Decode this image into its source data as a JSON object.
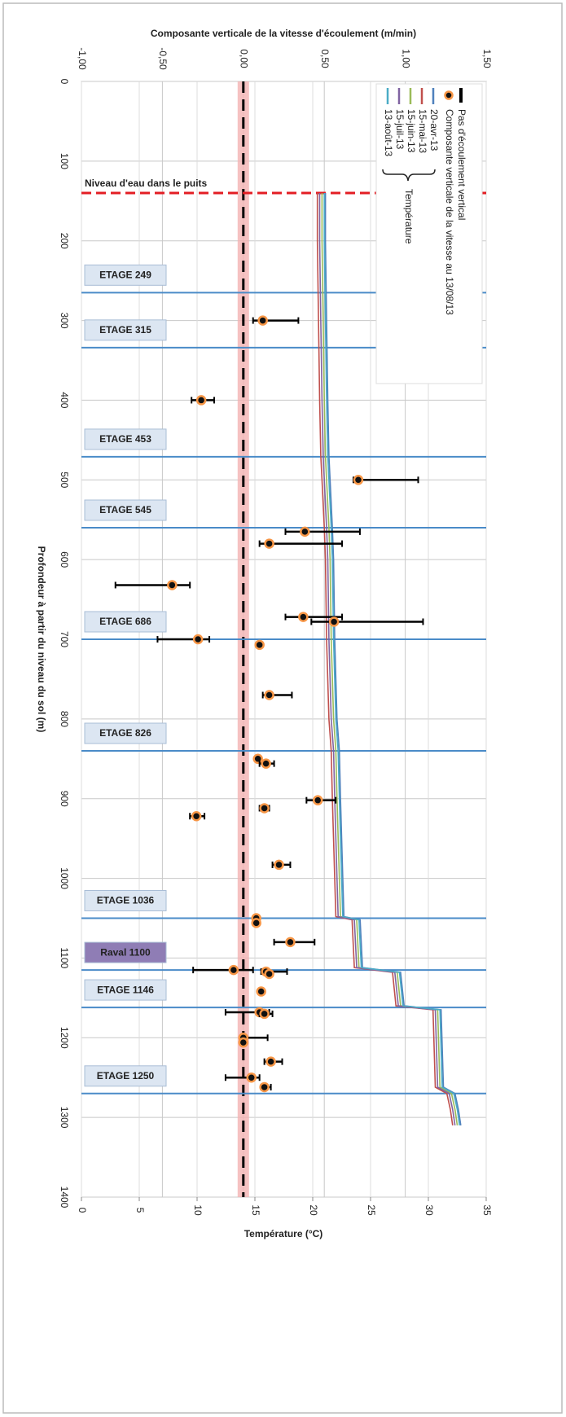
{
  "chart_data": {
    "type": "depth-profile",
    "title": "Composante verticale de la vitesse d'écoulement (m/min)",
    "x2_label": "Température (°C)",
    "y_label": "Profondeur à partir du niveau du sol (m)",
    "xlim": [
      -1,
      1.5
    ],
    "xticks": [
      {
        "value": -1,
        "label": "-1,00"
      },
      {
        "value": -0.5,
        "label": "-0,50"
      },
      {
        "value": 0,
        "label": "0,00"
      },
      {
        "value": 0.5,
        "label": "0,50"
      },
      {
        "value": 1,
        "label": "1,00"
      },
      {
        "value": 1.5,
        "label": "1,50"
      }
    ],
    "x2lim": [
      0,
      35
    ],
    "x2ticks": [
      0,
      5,
      10,
      15,
      20,
      25,
      30,
      35
    ],
    "ylim": [
      0,
      1400
    ],
    "yticks": [
      0,
      100,
      200,
      300,
      400,
      500,
      600,
      700,
      800,
      900,
      1000,
      1100,
      1200,
      1300,
      1400
    ],
    "grid": true,
    "legend": "top-right",
    "legend_group_label": "Température",
    "zero_line": {
      "name": "Pas d'écoulement vertical",
      "value": 0,
      "color": "#000000",
      "band_color": "#f4b3b3"
    },
    "water_level": {
      "label": "Niveau d'eau dans le puits",
      "depth": 140,
      "color": "#e31e24"
    },
    "levels": [
      {
        "label": "ETAGE 249",
        "depth": 265
      },
      {
        "label": "ETAGE 315",
        "depth": 334
      },
      {
        "label": "ETAGE 453",
        "depth": 471
      },
      {
        "label": "ETAGE 545",
        "depth": 560
      },
      {
        "label": "ETAGE 686",
        "depth": 700
      },
      {
        "label": "ETAGE 826",
        "depth": 840
      },
      {
        "label": "ETAGE 1036",
        "depth": 1050
      },
      {
        "label": "Raval 1100",
        "depth": 1115
      },
      {
        "label": "ETAGE 1146",
        "depth": 1162
      },
      {
        "label": "ETAGE 1250",
        "depth": 1270
      }
    ],
    "level_color": "#4a8bc8",
    "points": {
      "name": "Composante verticale de la vitesse au 13/08/13",
      "color": "#f79646",
      "depth": [
        300,
        400,
        500,
        565,
        580,
        632,
        672,
        678,
        700,
        707,
        770,
        850,
        856,
        902,
        912,
        922,
        983,
        1050,
        1056,
        1080,
        1115,
        1117,
        1120,
        1142,
        1168,
        1170,
        1200,
        1206,
        1230,
        1250,
        1262
      ],
      "values": [
        0.12,
        -0.26,
        0.71,
        0.38,
        0.16,
        -0.44,
        0.37,
        0.56,
        -0.28,
        0.1,
        0.16,
        0.09,
        0.14,
        0.46,
        0.13,
        -0.29,
        0.22,
        0.08,
        0.08,
        0.29,
        -0.06,
        0.14,
        0.16,
        0.11,
        0.1,
        0.13,
        0.0,
        0.0,
        0.17,
        0.05,
        0.13
      ],
      "err_minus": [
        0.06,
        0.06,
        0.03,
        0.12,
        0.06,
        0.35,
        0.11,
        0.14,
        0.25,
        0,
        0.04,
        0,
        0.04,
        0.07,
        0.03,
        0.04,
        0.04,
        0,
        0,
        0.1,
        0.25,
        0.03,
        0,
        0,
        0.21,
        0.03,
        0,
        0,
        0.04,
        0.16,
        0.02
      ],
      "err_plus": [
        0.22,
        0.08,
        0.37,
        0.34,
        0.45,
        0.11,
        0.24,
        0.55,
        0.07,
        0,
        0.14,
        0,
        0.05,
        0.11,
        0.03,
        0.05,
        0.07,
        0,
        0,
        0.15,
        0.12,
        0.13,
        0,
        0,
        0.06,
        0.05,
        0.15,
        0,
        0.07,
        0.05,
        0.04
      ]
    },
    "depth": [
      140,
      200,
      300,
      400,
      470,
      500,
      560,
      600,
      700,
      800,
      840,
      900,
      1000,
      1048,
      1052,
      1112,
      1118,
      1160,
      1165,
      1262,
      1270,
      1290,
      1310
    ],
    "series": [
      {
        "name": "20-avr-13",
        "color": "#4f81bd",
        "values": [
          21.1,
          21.1,
          21.2,
          21.3,
          21.4,
          21.5,
          21.7,
          21.8,
          21.9,
          22.1,
          22.3,
          22.4,
          22.6,
          22.7,
          24.1,
          24.3,
          27.6,
          27.9,
          31.1,
          31.3,
          32.3,
          32.6,
          32.8
        ]
      },
      {
        "name": "15-mai-13",
        "color": "#c0504d",
        "values": [
          20.4,
          20.4,
          20.5,
          20.6,
          20.7,
          20.8,
          21.0,
          21.1,
          21.2,
          21.4,
          21.6,
          21.7,
          21.9,
          22.0,
          23.4,
          23.6,
          26.9,
          27.2,
          30.4,
          30.6,
          31.6,
          31.9,
          32.1
        ]
      },
      {
        "name": "15-juin-13",
        "color": "#9bbb59",
        "values": [
          20.8,
          20.8,
          20.9,
          21.0,
          21.1,
          21.2,
          21.4,
          21.5,
          21.6,
          21.8,
          22.0,
          22.1,
          22.3,
          22.4,
          23.8,
          24.0,
          27.3,
          27.6,
          30.8,
          31.0,
          32.0,
          32.3,
          32.5
        ]
      },
      {
        "name": "15-juil-13",
        "color": "#8064a2",
        "values": [
          20.6,
          20.6,
          20.7,
          20.8,
          20.9,
          21.0,
          21.2,
          21.3,
          21.4,
          21.6,
          21.8,
          21.9,
          22.1,
          22.2,
          23.6,
          23.8,
          27.1,
          27.4,
          30.6,
          30.8,
          31.8,
          32.1,
          32.3
        ]
      },
      {
        "name": "13-août-13",
        "color": "#4bacc6",
        "values": [
          21.0,
          21.0,
          21.1,
          21.2,
          21.3,
          21.4,
          21.6,
          21.7,
          21.8,
          22.0,
          22.2,
          22.3,
          22.5,
          22.6,
          24.0,
          24.2,
          27.5,
          27.8,
          31.0,
          31.2,
          32.2,
          32.5,
          32.7
        ]
      }
    ]
  }
}
